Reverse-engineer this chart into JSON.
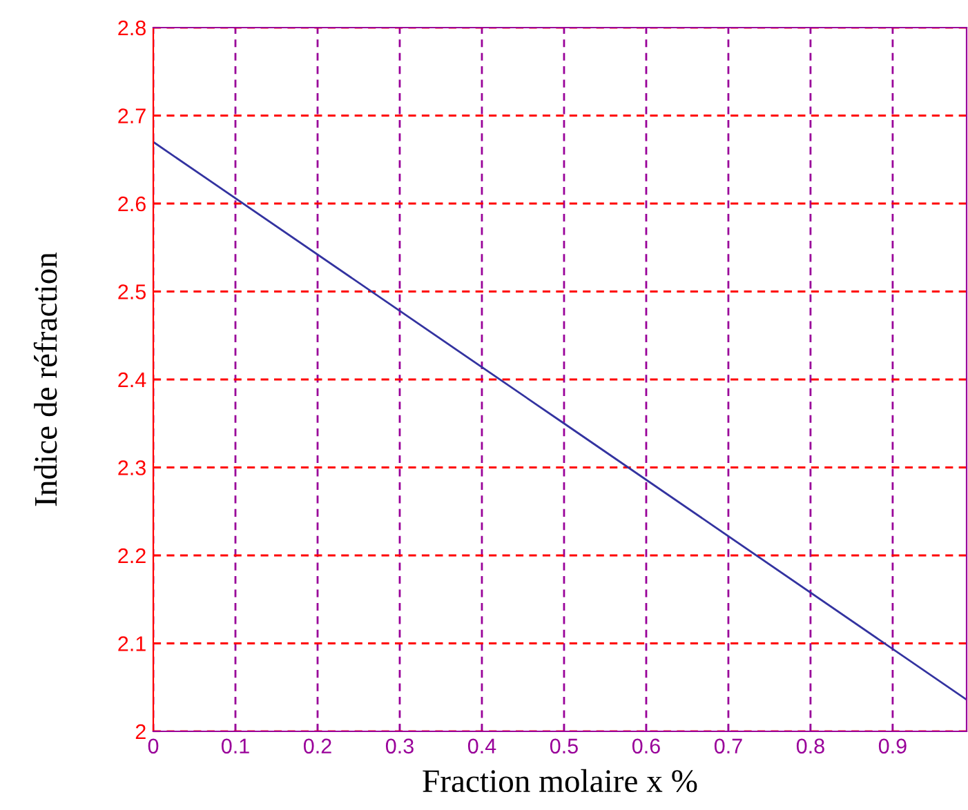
{
  "chart_data": {
    "type": "line",
    "xlabel": "Fraction molaire x %",
    "ylabel": "Indice de réfraction",
    "x": [
      0,
      0.5,
      0.99
    ],
    "series": [
      {
        "color": "#3333a0",
        "values": [
          2.67,
          2.35,
          2.036
        ]
      }
    ],
    "xlim": [
      0,
      0.99
    ],
    "xticks": [
      0,
      0.1,
      0.2,
      0.3,
      0.4,
      0.5,
      0.6,
      0.7,
      0.8,
      0.9
    ],
    "ylim": [
      2,
      2.8
    ],
    "yticks": [
      2,
      2.1,
      2.2,
      2.3,
      2.4,
      2.5,
      2.6,
      2.7,
      2.8
    ],
    "grid": true,
    "marker": "none",
    "line_style": "solid"
  }
}
